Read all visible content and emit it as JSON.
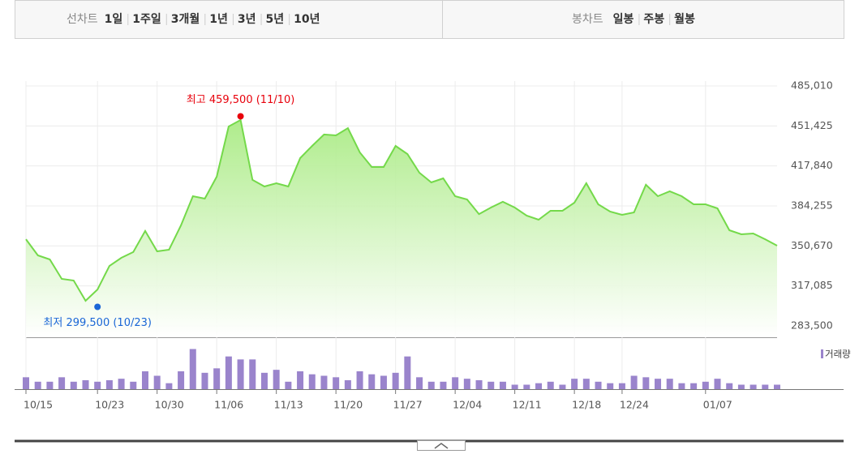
{
  "toolbar": {
    "line_label": "선차트",
    "line_periods": [
      "1일",
      "1주일",
      "3개월",
      "1년",
      "3년",
      "5년",
      "10년"
    ],
    "active": 2,
    "candle_label": "봉차트",
    "candle_periods": [
      "일봉",
      "주봉",
      "월봉"
    ]
  },
  "chart_data": [
    {
      "type": "area",
      "color": "#74d94a",
      "grid": true,
      "categories": [
        "10/15",
        null,
        null,
        null,
        null,
        null,
        "10/23",
        null,
        null,
        null,
        null,
        "10/30",
        null,
        null,
        null,
        null,
        "11/06",
        null,
        null,
        null,
        null,
        "11/13",
        null,
        null,
        null,
        null,
        "11/20",
        null,
        null,
        null,
        null,
        "11/27",
        null,
        null,
        null,
        null,
        "12/04",
        null,
        null,
        null,
        null,
        "12/11",
        null,
        null,
        null,
        null,
        "12/18",
        null,
        null,
        null,
        "12/24",
        null,
        null,
        null,
        null,
        null,
        null,
        "01/07",
        null,
        null,
        null,
        null,
        null,
        null
      ],
      "series": [
        {
          "values": [
            356300,
            342700,
            339300,
            323000,
            321600,
            304600,
            314100,
            333900,
            340700,
            345500,
            363200,
            346100,
            347500,
            367900,
            392400,
            390400,
            408800,
            451000,
            456400,
            406100,
            400600,
            403300,
            400600,
            424400,
            434600,
            444200,
            443500,
            449600,
            429200,
            416900,
            416900,
            434600,
            427800,
            412200,
            404000,
            407400,
            392400,
            389700,
            377400,
            382900,
            387700,
            382900,
            376100,
            372700,
            380200,
            380200,
            387000,
            403300,
            385600,
            379500,
            376800,
            378800,
            402000,
            392400,
            396500,
            392400,
            385600,
            385600,
            382200,
            363800,
            360400,
            361100,
            356300,
            350900
          ]
        }
      ],
      "ylim": [
        283500,
        485010
      ],
      "yticks": [
        {
          "value": 283500,
          "label": "283,500"
        },
        {
          "value": 317085,
          "label": "317,085"
        },
        {
          "value": 350670,
          "label": "350,670"
        },
        {
          "value": 384255,
          "label": "384,255"
        },
        {
          "value": 417840,
          "label": "417,840"
        },
        {
          "value": 451425,
          "label": "451,425"
        },
        {
          "value": 485010,
          "label": "485,010"
        }
      ],
      "annotations": [
        {
          "text": "최고 459,500 (11/10)",
          "value": 459500,
          "index": 18,
          "color": "#e8000b",
          "side": "above"
        },
        {
          "text": "최저 299,500 (10/23)",
          "value": 299500,
          "index": 6,
          "color": "#1a66d6",
          "side": "below"
        }
      ]
    },
    {
      "type": "bar",
      "series": [
        {
          "name": "거래량",
          "color": "#9a84cc",
          "values": [
            16,
            10,
            10,
            16,
            10,
            12,
            10,
            12,
            14,
            10,
            24,
            18,
            8,
            24,
            54,
            22,
            28,
            44,
            40,
            40,
            22,
            26,
            10,
            24,
            20,
            18,
            16,
            12,
            24,
            20,
            18,
            22,
            44,
            16,
            10,
            10,
            16,
            14,
            12,
            10,
            10,
            6,
            6,
            8,
            10,
            6,
            14,
            14,
            10,
            8,
            8,
            18,
            16,
            14,
            14,
            8,
            8,
            10,
            14,
            8,
            6,
            6,
            6,
            6
          ]
        }
      ],
      "ylim": [
        0,
        60
      ]
    }
  ]
}
